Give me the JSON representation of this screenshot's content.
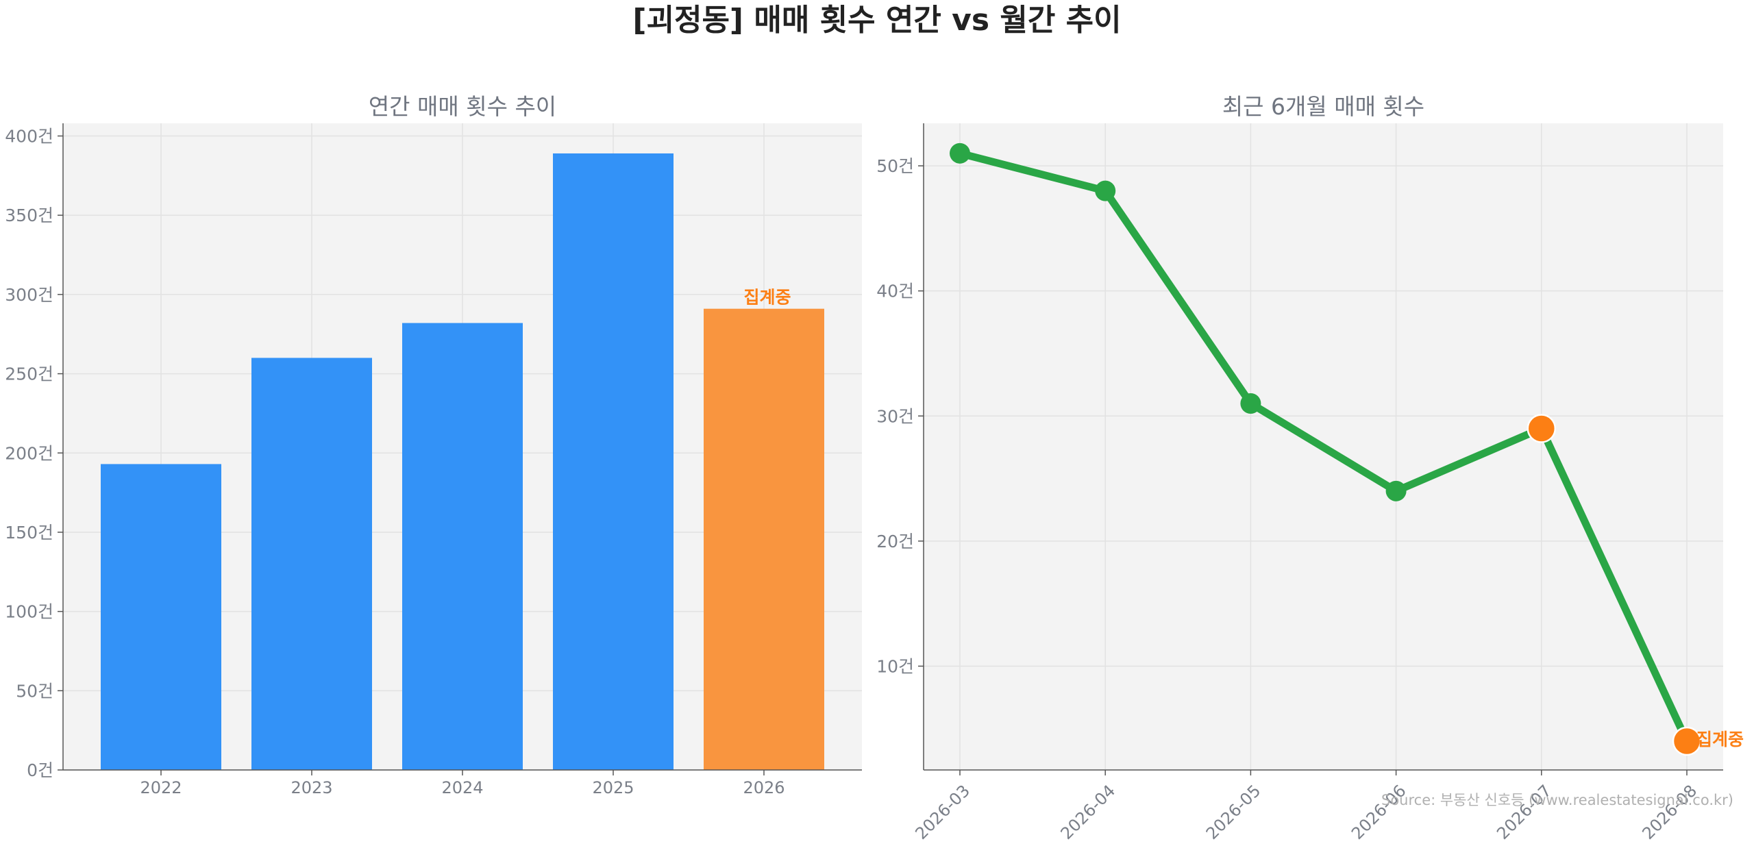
{
  "figure": {
    "title": "[괴정동] 매매 횟수 연간 vs 월간 추이",
    "source": "Source: 부동산 신호등 (www.realestatesignal.co.kr)"
  },
  "colors": {
    "bar_default": "#3392f7",
    "bar_highlight": "#f9953f",
    "line": "#2aa646",
    "marker_highlight": "#fc7f14",
    "annotation_text": "#fc7f14",
    "plot_background": "#f3f3f3",
    "grid": "#e2e2e2",
    "axis_text": "#7a7f88",
    "subtitle_text": "#6f7580",
    "main_title_text": "#222222",
    "source_text": "#b0b0b0"
  },
  "chart_data": [
    {
      "type": "bar",
      "title": "연간 매매 횟수 추이",
      "categories": [
        "2022",
        "2023",
        "2024",
        "2025",
        "2026"
      ],
      "values": [
        193,
        260,
        282,
        389,
        291
      ],
      "highlight_index": 4,
      "annotation": {
        "index": 4,
        "text": "집계중"
      },
      "ylim": [
        0,
        408
      ],
      "yticks": [
        0,
        50,
        100,
        150,
        200,
        250,
        300,
        350,
        400
      ],
      "tick_suffix": "건",
      "grid": true,
      "xlabel": "",
      "ylabel": ""
    },
    {
      "type": "line",
      "title": "최근 6개월 매매 횟수",
      "x": [
        "2026-03",
        "2026-04",
        "2026-05",
        "2026-06",
        "2026-07",
        "2026-08"
      ],
      "values": [
        51,
        48,
        31,
        24,
        29,
        4
      ],
      "highlight_indices": [
        4,
        5
      ],
      "annotation": {
        "index": 5,
        "text": "집계중"
      },
      "ylim": [
        1.7,
        53.4
      ],
      "yticks": [
        10,
        20,
        30,
        40,
        50
      ],
      "tick_suffix": "건",
      "x_tick_rotation": "45deg",
      "grid": true,
      "xlabel": "",
      "ylabel": ""
    }
  ]
}
